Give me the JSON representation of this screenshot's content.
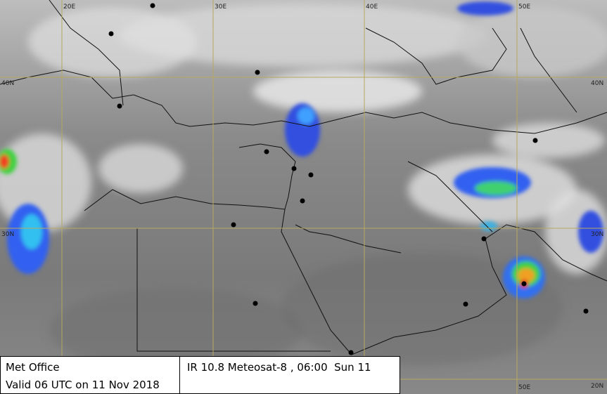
{
  "info_box": {
    "source": "Met Office",
    "valid": "Valid 06 UTC on 11 Nov 2018"
  },
  "caption": "IR 10.8 Meteosat-8 , 06:00  Sun 11",
  "grid_labels": {
    "top": [
      "20E",
      "30E",
      "40E",
      "50E"
    ],
    "left": [
      "40N",
      "30N"
    ],
    "right": [
      "40N",
      "30N",
      "20N"
    ],
    "bottom": [
      "50E"
    ]
  }
}
